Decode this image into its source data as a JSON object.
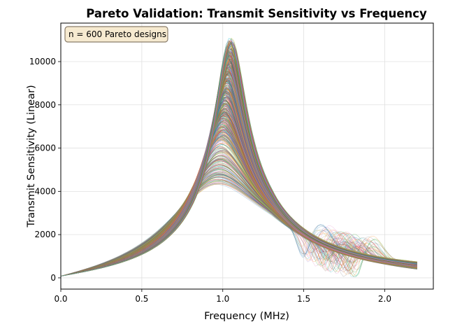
{
  "chart_data": {
    "type": "line",
    "title": "Pareto Validation: Transmit Sensitivity vs Frequency",
    "xlabel": "Frequency (MHz)",
    "ylabel": "Transmit Sensitivity (Linear)",
    "xlim": [
      0,
      2.3
    ],
    "ylim": [
      -520,
      11780
    ],
    "xticks": [
      0.0,
      0.5,
      1.0,
      1.5,
      2.0
    ],
    "xtick_labels": [
      "0.0",
      "0.5",
      "1.0",
      "1.5",
      "2.0"
    ],
    "yticks": [
      0,
      2000,
      4000,
      6000,
      8000,
      10000
    ],
    "ytick_labels": [
      "0",
      "2000",
      "4000",
      "6000",
      "8000",
      "10000"
    ],
    "grid": true,
    "annotation": "n = 600 Pareto designs",
    "annotation_position": "top-left",
    "series_count": 600,
    "frequency_range": [
      0.0,
      2.2
    ],
    "summary": {
      "peak_frequency_range_MHz": [
        0.95,
        1.07
      ],
      "peak_value_range": [
        4300,
        11100
      ],
      "value_at_0_MHz": 80,
      "value_at_0_5_MHz_range": [
        1050,
        1250
      ],
      "value_at_2_2_MHz_range": [
        350,
        1100
      ],
      "secondary_bump_frequency_MHz": 1.8,
      "secondary_bump_max": 2850
    },
    "representative_series": [
      {
        "name": "highest-peak",
        "x": [
          0.0,
          0.25,
          0.5,
          0.75,
          0.9,
          1.0,
          1.05,
          1.1,
          1.25,
          1.5,
          1.75,
          2.0,
          2.2
        ],
        "y": [
          80,
          500,
          1250,
          3300,
          7600,
          10600,
          11100,
          10700,
          7400,
          4200,
          2400,
          1500,
          1050
        ]
      },
      {
        "name": "median-peak",
        "x": [
          0.0,
          0.25,
          0.5,
          0.75,
          0.9,
          1.0,
          1.05,
          1.1,
          1.25,
          1.5,
          1.75,
          2.0,
          2.2
        ],
        "y": [
          80,
          480,
          1150,
          2700,
          5200,
          7300,
          7700,
          7400,
          5600,
          3800,
          2300,
          1300,
          800
        ]
      },
      {
        "name": "lowest-peak",
        "x": [
          0.0,
          0.25,
          0.5,
          0.75,
          0.9,
          1.0,
          1.05,
          1.1,
          1.25,
          1.5,
          1.75,
          2.0,
          2.2
        ],
        "y": [
          80,
          460,
          1050,
          2400,
          3900,
          4300,
          4250,
          4050,
          3600,
          3000,
          1900,
          1000,
          550
        ]
      }
    ],
    "colors": [
      "#1f77b4",
      "#ff7f0e",
      "#2ca02c",
      "#d62728",
      "#9467bd",
      "#8c564b",
      "#e377c2",
      "#7f7f7f",
      "#bcbd22",
      "#17becf"
    ]
  }
}
